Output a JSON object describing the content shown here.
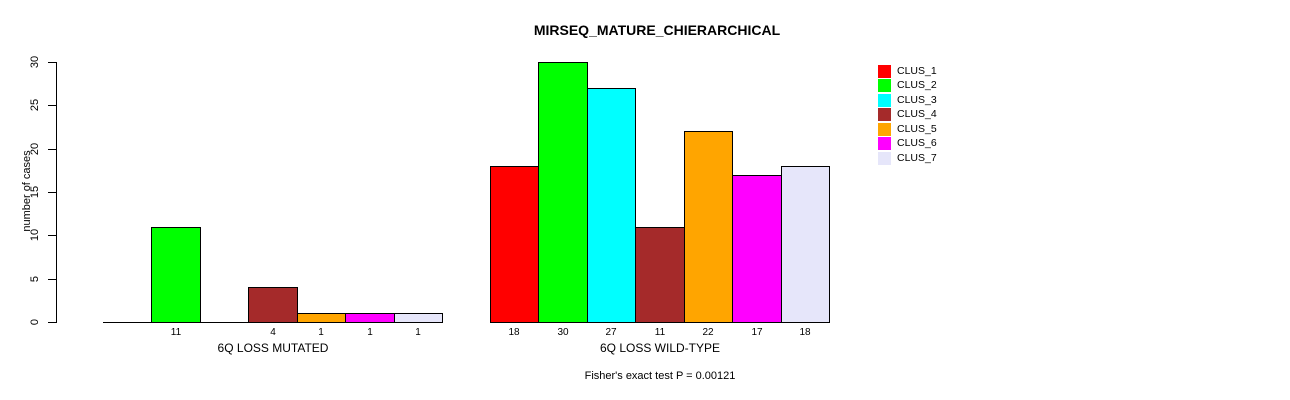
{
  "chart_data": {
    "type": "bar",
    "title": "MIRSEQ_MATURE_CHIERARCHICAL",
    "ylabel": "number of cases",
    "xlabel": "",
    "ylim": [
      0,
      30
    ],
    "y_ticks": [
      0,
      5,
      10,
      15,
      20,
      25,
      30
    ],
    "grid": false,
    "legend_position": "right",
    "categories": [
      "CLUS_1",
      "CLUS_2",
      "CLUS_3",
      "CLUS_4",
      "CLUS_5",
      "CLUS_6",
      "CLUS_7"
    ],
    "colors": [
      "#ff0000",
      "#00ff00",
      "#00ffff",
      "#a52a2a",
      "#ffa500",
      "#ff00ff",
      "#e6e6fa"
    ],
    "groups": [
      {
        "label": "6Q LOSS MUTATED",
        "values": [
          0,
          11,
          0,
          4,
          1,
          1,
          1
        ],
        "bar_labels": [
          "",
          "11",
          "",
          "4",
          "1",
          "1",
          "1"
        ]
      },
      {
        "label": "6Q LOSS WILD-TYPE",
        "values": [
          18,
          30,
          27,
          11,
          22,
          17,
          18
        ],
        "bar_labels": [
          "18",
          "30",
          "27",
          "11",
          "22",
          "17",
          "18"
        ]
      }
    ],
    "annotation": "Fisher's exact test P = 0.00121"
  }
}
